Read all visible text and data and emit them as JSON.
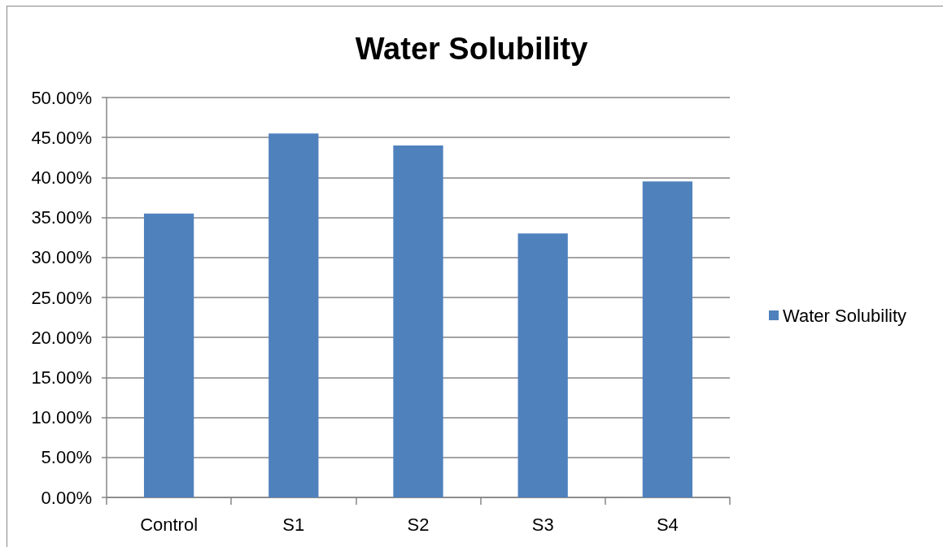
{
  "chart_data": {
    "type": "bar",
    "title": "Water Solubility",
    "categories": [
      "Control",
      "S1",
      "S2",
      "S3",
      "S4"
    ],
    "series": [
      {
        "name": "Water Solubility",
        "color": "#4f81bd",
        "values": [
          35.5,
          45.5,
          44.0,
          33.0,
          39.5
        ]
      }
    ],
    "ylim": [
      0,
      50
    ],
    "yticks": [
      {
        "value": 0,
        "label": "0.00%"
      },
      {
        "value": 5,
        "label": "5.00%"
      },
      {
        "value": 10,
        "label": "10.00%"
      },
      {
        "value": 15,
        "label": "15.00%"
      },
      {
        "value": 20,
        "label": "20.00%"
      },
      {
        "value": 25,
        "label": "25.00%"
      },
      {
        "value": 30,
        "label": "30.00%"
      },
      {
        "value": 35,
        "label": "35.00%"
      },
      {
        "value": 40,
        "label": "40.00%"
      },
      {
        "value": 45,
        "label": "45.00%"
      },
      {
        "value": 50,
        "label": "50.00%"
      }
    ],
    "grid": "y",
    "legend": "right"
  }
}
